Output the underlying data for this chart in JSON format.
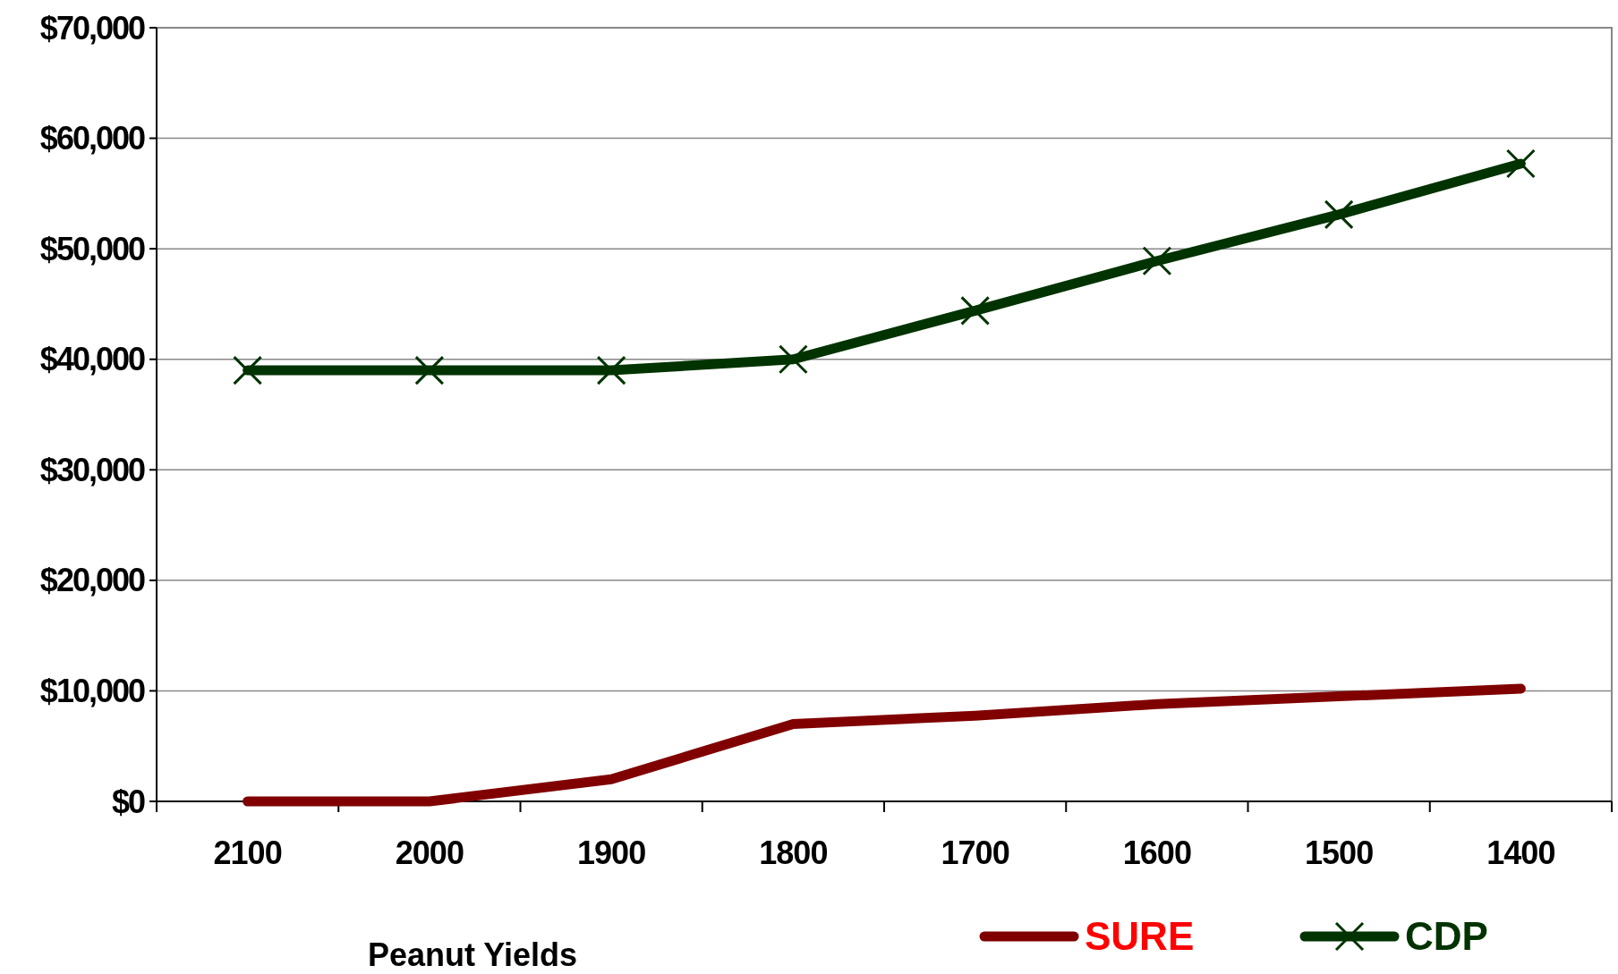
{
  "chart_data": {
    "type": "line",
    "xlabel": "Peanut Yields",
    "categories": [
      "2100",
      "2000",
      "1900",
      "1800",
      "1700",
      "1600",
      "1500",
      "1400"
    ],
    "series": [
      {
        "name": "SURE",
        "color": "#800000",
        "values": [
          0,
          0,
          2000,
          7000,
          7750,
          8800,
          9500,
          10200
        ],
        "marker": "none"
      },
      {
        "name": "CDP",
        "color": "#003300",
        "values": [
          39000,
          39000,
          39000,
          40000,
          44400,
          48900,
          53100,
          57700
        ],
        "marker": "cross"
      }
    ],
    "ylim": [
      0,
      70000
    ],
    "yticks": [
      {
        "value": 0,
        "label": "$0"
      },
      {
        "value": 10000,
        "label": "$10,000"
      },
      {
        "value": 20000,
        "label": "$20,000"
      },
      {
        "value": 30000,
        "label": "$30,000"
      },
      {
        "value": 40000,
        "label": "$40,000"
      },
      {
        "value": 50000,
        "label": "$50,000"
      },
      {
        "value": 60000,
        "label": "$60,000"
      },
      {
        "value": 70000,
        "label": "$70,000"
      }
    ],
    "grid": "y",
    "legend": "bottom right",
    "line_style": "solid"
  }
}
